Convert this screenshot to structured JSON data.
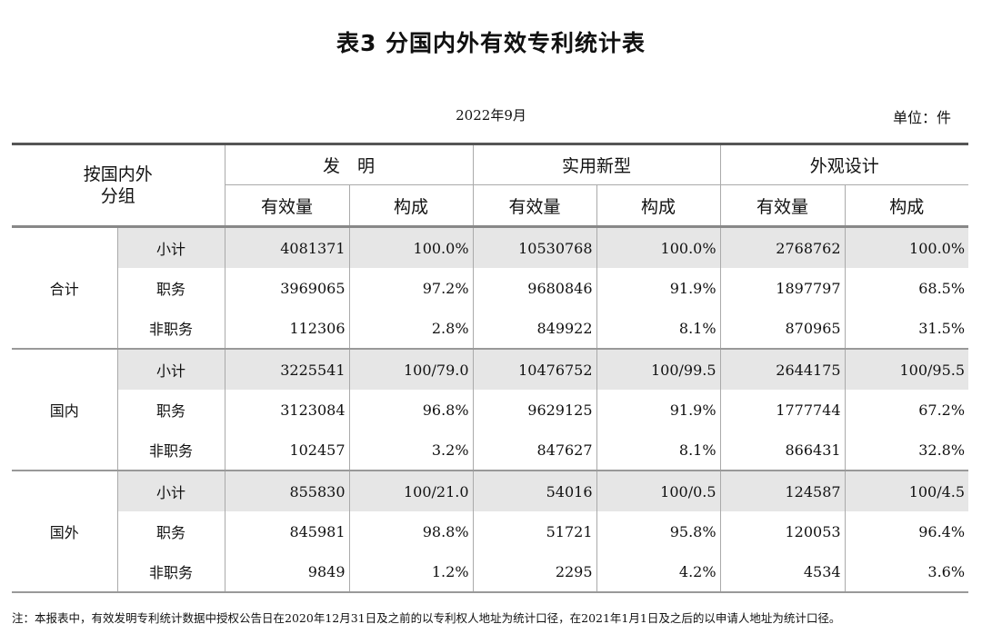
{
  "title": "表3  分国内外有效专利统计表",
  "date": "2022年9月",
  "unit": "单位：件",
  "header": {
    "group_label_line1": "按国内外",
    "group_label_line2": "分组",
    "sections": [
      "发　明",
      "实用新型",
      "外观设计"
    ],
    "sub_columns": [
      "有效量",
      "构成",
      "有效量",
      "构成",
      "有效量",
      "构成"
    ]
  },
  "groups": [
    {
      "name": "合计",
      "rows": [
        {
          "category": "小计",
          "values": [
            "4081371",
            "100.0%",
            "10530768",
            "100.0%",
            "2768762",
            "100.0%"
          ]
        },
        {
          "category": "职务",
          "values": [
            "3969065",
            "97.2%",
            "9680846",
            "91.9%",
            "1897797",
            "68.5%"
          ]
        },
        {
          "category": "非职务",
          "values": [
            "112306",
            "2.8%",
            "849922",
            "8.1%",
            "870965",
            "31.5%"
          ]
        }
      ]
    },
    {
      "name": "国内",
      "rows": [
        {
          "category": "小计",
          "values": [
            "3225541",
            "100/79.0",
            "10476752",
            "100/99.5",
            "2644175",
            "100/95.5"
          ]
        },
        {
          "category": "职务",
          "values": [
            "3123084",
            "96.8%",
            "9629125",
            "91.9%",
            "1777744",
            "67.2%"
          ]
        },
        {
          "category": "非职务",
          "values": [
            "102457",
            "3.2%",
            "847627",
            "8.1%",
            "866431",
            "32.8%"
          ]
        }
      ]
    },
    {
      "name": "国外",
      "rows": [
        {
          "category": "小计",
          "values": [
            "855830",
            "100/21.0",
            "54016",
            "100/0.5",
            "124587",
            "100/4.5"
          ]
        },
        {
          "category": "职务",
          "values": [
            "845981",
            "98.8%",
            "51721",
            "95.8%",
            "120053",
            "96.4%"
          ]
        },
        {
          "category": "非职务",
          "values": [
            "9849",
            "1.2%",
            "2295",
            "4.2%",
            "4534",
            "3.6%"
          ]
        }
      ]
    }
  ],
  "note": "注：本报表中，有效发明专利统计数据中授权公告日在2020年12月31日及之前的以专利权人地址为统计口径，在2021年1月1日及之后的以申请人地址为统计口径。"
}
